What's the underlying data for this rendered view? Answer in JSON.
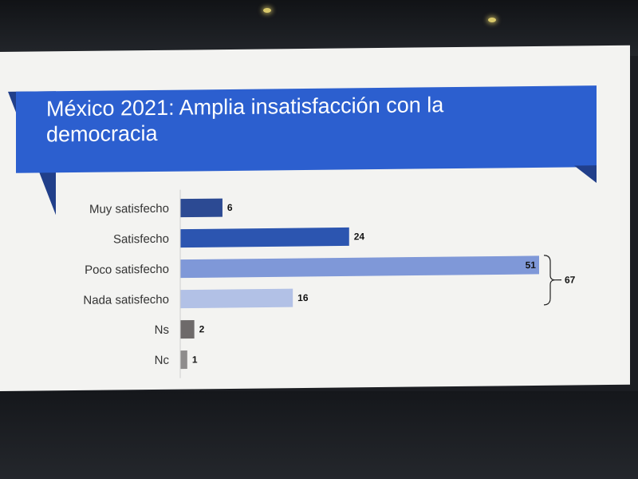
{
  "chart_data": {
    "type": "bar",
    "orientation": "horizontal",
    "title": "México 2021: Amplia insatisfacción con la democracia",
    "categories": [
      "Muy satisfecho",
      "Satisfecho",
      "Poco satisfecho",
      "Nada satisfecho",
      "Ns",
      "Nc"
    ],
    "values": [
      6,
      24,
      51,
      16,
      2,
      1
    ],
    "bar_colors": [
      "#2c4a93",
      "#2c55b0",
      "#7f98d8",
      "#b2c1e6",
      "#6e6a6a",
      "#8e8c8c"
    ],
    "xlim": [
      0,
      51
    ],
    "grid": false,
    "bracket": {
      "categories": [
        "Poco satisfecho",
        "Nada satisfecho"
      ],
      "label": "67"
    }
  },
  "colors": {
    "banner": "#2c5fcf",
    "banner_shadow": "#213f8a",
    "slide_background": "#f3f3f1"
  }
}
